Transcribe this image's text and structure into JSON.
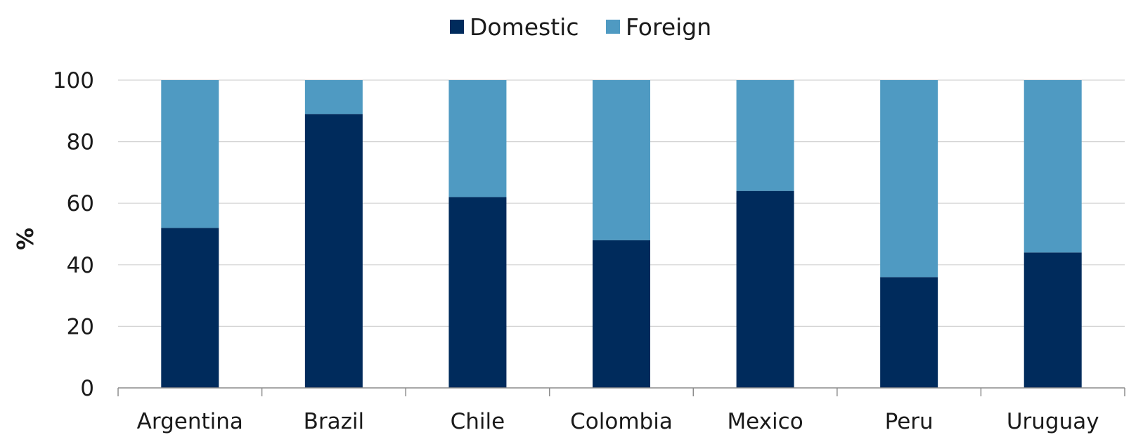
{
  "chart_data": {
    "type": "bar",
    "stacked": true,
    "categories": [
      "Argentina",
      "Brazil",
      "Chile",
      "Colombia",
      "Mexico",
      "Peru",
      "Uruguay"
    ],
    "series": [
      {
        "name": "Domestic",
        "values": [
          52,
          89,
          62,
          48,
          64,
          36,
          44
        ],
        "color": "#002b5c"
      },
      {
        "name": "Foreign",
        "values": [
          48,
          11,
          38,
          52,
          36,
          64,
          56
        ],
        "color": "#4f9ac2"
      }
    ],
    "title": "",
    "xlabel": "",
    "ylabel": "%",
    "ylim": [
      0,
      100
    ],
    "yticks": [
      0,
      20,
      40,
      60,
      80,
      100
    ],
    "grid": true,
    "legend_position": "top-center"
  }
}
